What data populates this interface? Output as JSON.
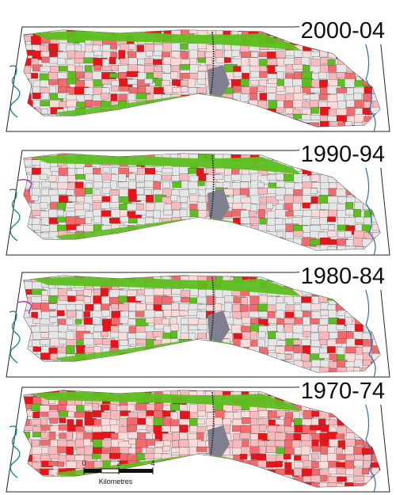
{
  "panels": [
    {
      "period": "2000-04",
      "red_share": 0.55
    },
    {
      "period": "1990-94",
      "red_share": 0.25
    },
    {
      "period": "1980-84",
      "red_share": 0.35
    },
    {
      "period": "1970-74",
      "red_share": 0.8
    }
  ],
  "scale_bar": {
    "ticks": [
      "0",
      "2",
      "4"
    ],
    "unit_label": "Kilometres"
  },
  "colors": {
    "red_strong": "#e8141a",
    "red_mid": "#f06a6e",
    "pink": "#f7b9bb",
    "pink_light": "#fbdada",
    "grey_parcel": "#e6e6e6",
    "green": "#5cbf1f",
    "green_bright": "#22e822",
    "dark_grey_town": "#7f7f8f",
    "river_blue": "#2f6fa8",
    "river_teal": "#1f8f8f",
    "purple": "#b02fb0"
  }
}
